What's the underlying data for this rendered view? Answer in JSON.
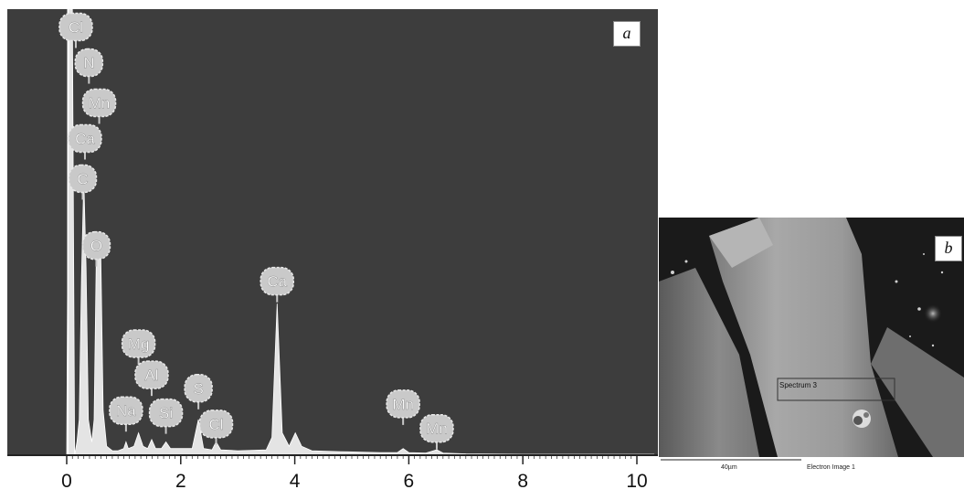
{
  "chart_data": {
    "type": "area",
    "xlim": [
      0,
      10.3
    ],
    "ylim": [
      0,
      100
    ],
    "x_ticks": [
      "0",
      "2",
      "4",
      "6",
      "8",
      "10"
    ],
    "x_tick_values": [
      0,
      2,
      4,
      6,
      8,
      10
    ],
    "spectrum": [
      [
        0.0,
        0
      ],
      [
        0.04,
        100
      ],
      [
        0.1,
        100
      ],
      [
        0.14,
        0
      ],
      [
        0.18,
        3
      ],
      [
        0.22,
        8
      ],
      [
        0.26,
        40
      ],
      [
        0.3,
        62
      ],
      [
        0.34,
        42
      ],
      [
        0.38,
        8
      ],
      [
        0.44,
        3
      ],
      [
        0.48,
        8
      ],
      [
        0.52,
        45
      ],
      [
        0.56,
        50
      ],
      [
        0.6,
        44
      ],
      [
        0.64,
        10
      ],
      [
        0.7,
        2
      ],
      [
        0.8,
        1
      ],
      [
        0.9,
        1
      ],
      [
        1.0,
        1.5
      ],
      [
        1.04,
        3
      ],
      [
        1.08,
        1.5
      ],
      [
        1.18,
        2
      ],
      [
        1.26,
        5
      ],
      [
        1.34,
        2
      ],
      [
        1.42,
        1.5
      ],
      [
        1.49,
        3.5
      ],
      [
        1.56,
        1.5
      ],
      [
        1.66,
        1.5
      ],
      [
        1.74,
        3
      ],
      [
        1.82,
        1.5
      ],
      [
        2.2,
        1.5
      ],
      [
        2.31,
        8
      ],
      [
        2.4,
        1.5
      ],
      [
        2.55,
        1.2
      ],
      [
        2.62,
        3
      ],
      [
        2.7,
        1.2
      ],
      [
        3.0,
        1
      ],
      [
        3.5,
        1.2
      ],
      [
        3.6,
        4
      ],
      [
        3.69,
        34
      ],
      [
        3.78,
        5
      ],
      [
        3.9,
        2
      ],
      [
        4.01,
        5
      ],
      [
        4.12,
        2
      ],
      [
        4.3,
        1
      ],
      [
        4.8,
        0.8
      ],
      [
        5.5,
        0.6
      ],
      [
        5.8,
        0.6
      ],
      [
        5.9,
        1.5
      ],
      [
        6.0,
        0.6
      ],
      [
        6.3,
        0.5
      ],
      [
        6.49,
        1.2
      ],
      [
        6.6,
        0.5
      ],
      [
        7.0,
        0.3
      ],
      [
        8.0,
        0.2
      ],
      [
        9.0,
        0.2
      ],
      [
        10.3,
        0.2
      ]
    ],
    "peaks": [
      {
        "label": "Cl",
        "x": 0.16,
        "y": 96
      },
      {
        "label": "N",
        "x": 0.39,
        "y": 88
      },
      {
        "label": "Mn",
        "x": 0.57,
        "y": 79
      },
      {
        "label": "Ca",
        "x": 0.32,
        "y": 71
      },
      {
        "label": "C",
        "x": 0.28,
        "y": 62
      },
      {
        "label": "O",
        "x": 0.52,
        "y": 47
      },
      {
        "label": "Ca",
        "x": 3.69,
        "y": 39
      },
      {
        "label": "Mg",
        "x": 1.26,
        "y": 25
      },
      {
        "label": "Al",
        "x": 1.49,
        "y": 18
      },
      {
        "label": "S",
        "x": 2.31,
        "y": 15
      },
      {
        "label": "Na",
        "x": 1.04,
        "y": 10
      },
      {
        "label": "Si",
        "x": 1.74,
        "y": 9.5
      },
      {
        "label": "Cl",
        "x": 2.62,
        "y": 7
      },
      {
        "label": "Mn",
        "x": 5.9,
        "y": 11.5
      },
      {
        "label": "Mn",
        "x": 6.49,
        "y": 6
      }
    ]
  },
  "panel_a": {
    "letter": "a"
  },
  "panel_b": {
    "letter": "b",
    "spectrum_label": "Spectrum 3",
    "scale_text": "40µm",
    "image_title": "Electron Image 1"
  },
  "colors": {
    "plot_bg": "#3d3d3d",
    "spectrum_fill": "#e4e4e4",
    "label_bubble": "#c9c9c9",
    "label_text": "#ffffff"
  }
}
